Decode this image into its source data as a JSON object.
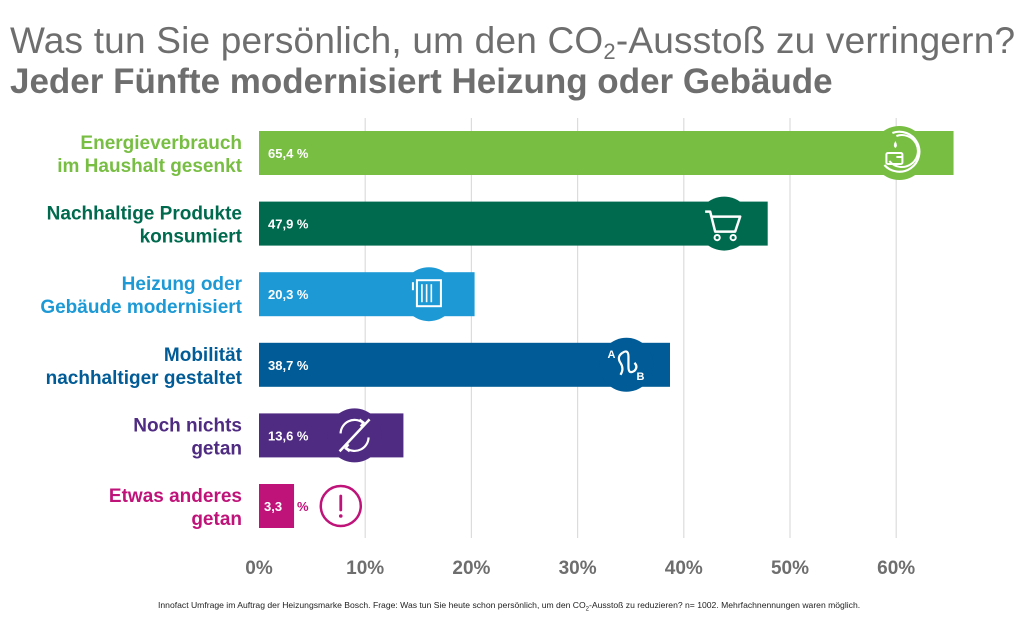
{
  "title_part1": "Was tun Sie persönlich, um den CO",
  "title_sub": "2",
  "title_part2": "-Ausstoß zu verringern?",
  "subtitle": "Jeder Fünfte modernisiert Heizung oder Gebäude",
  "footnote_part1": "Innofact Umfrage im Auftrag der Heizungsmarke Bosch. Frage:  Was tun Sie heute schon persönlich, um den CO",
  "footnote_sub": "2",
  "footnote_part2": "-Ausstoß zu reduzieren? n= 1002. Mehrfachnennungen waren möglich.",
  "chart_data": {
    "type": "bar",
    "orientation": "horizontal",
    "title": "Was tun Sie persönlich, um den CO2-Ausstoß zu verringern?",
    "subtitle": "Jeder Fünfte modernisiert Heizung oder Gebäude",
    "xlim": [
      0,
      65.4
    ],
    "ticks": [
      0,
      10,
      20,
      30,
      40,
      50,
      60
    ],
    "tick_labels": [
      "0%",
      "10%",
      "20%",
      "30%",
      "40%",
      "50%",
      "60%"
    ],
    "grid": true,
    "bars": [
      {
        "label_lines": [
          "Energieverbrauch",
          "im Haushalt gesenkt"
        ],
        "value": 65.4,
        "value_label": "65,4 %",
        "color": "#78be43",
        "icon": "water-energy-icon",
        "icon_at": 60.3
      },
      {
        "label_lines": [
          "Nachhaltige Produkte",
          "konsumiert"
        ],
        "value": 47.9,
        "value_label": "47,9 %",
        "color": "#006a4e",
        "icon": "shopping-cart-icon",
        "icon_at": 43.8
      },
      {
        "label_lines": [
          "Heizung oder",
          "Gebäude modernisiert"
        ],
        "value": 20.3,
        "value_label": "20,3 %",
        "color": "#1d9ad6",
        "icon": "radiator-icon",
        "icon_at": 16.0
      },
      {
        "label_lines": [
          "Mobilität",
          "nachhaltiger gestaltet"
        ],
        "value": 38.7,
        "value_label": "38,7 %",
        "color": "#005b96",
        "icon": "route-a-b-icon",
        "icon_at": 34.6
      },
      {
        "label_lines": [
          "Noch nichts",
          "getan"
        ],
        "value": 13.6,
        "value_label": "13,6 %",
        "color": "#4f2b82",
        "icon": "no-change-icon",
        "icon_at": 9.0
      },
      {
        "label_lines": [
          "Etwas anderes",
          "getan"
        ],
        "value": 3.3,
        "value_label_num": "3,3",
        "value_label_unit": "%",
        "color": "#c0137a",
        "icon": "exclamation-icon",
        "icon_at": 7.7
      }
    ]
  }
}
